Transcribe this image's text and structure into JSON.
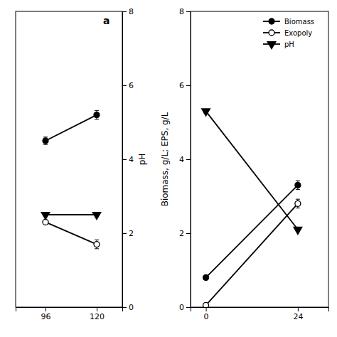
{
  "chart_data": [
    {
      "type": "line",
      "annotations": [
        "a"
      ],
      "x": [
        96,
        120
      ],
      "xlim": [
        82,
        132
      ],
      "xticks": [
        96,
        120
      ],
      "y2lim": [
        0,
        8
      ],
      "y2ticks": [
        0,
        2,
        4,
        6,
        8
      ],
      "y2label": "pH",
      "series": [
        {
          "color": "#000000",
          "marker": "circle",
          "axis": "y2",
          "values": [
            4.5,
            5.2
          ],
          "errors": [
            0.1,
            0.12
          ]
        },
        {
          "color": "#000000",
          "marker": "circle-open",
          "axis": "y2",
          "values": [
            2.3,
            1.7
          ],
          "errors": [
            0.05,
            0.12
          ]
        },
        {
          "color": "#000000",
          "marker": "triangle-down",
          "axis": "y2",
          "values": [
            2.5,
            2.5
          ],
          "errors": [
            0.05,
            0.05
          ]
        }
      ]
    },
    {
      "type": "line",
      "x": [
        0,
        24
      ],
      "xlim": [
        -4,
        32
      ],
      "xticks": [
        0,
        24
      ],
      "ylim": [
        0,
        8
      ],
      "yticks": [
        0,
        2,
        4,
        6,
        8
      ],
      "ylabel": "Biomass, g/L; EPS, g/L",
      "legend": "upper right",
      "series": [
        {
          "name": "Biomass",
          "color": "#000000",
          "marker": "circle",
          "values": [
            0.8,
            3.3
          ],
          "errors": [
            0.05,
            0.12
          ]
        },
        {
          "name": "Exopoly",
          "color": "#000000",
          "marker": "circle-open",
          "values": [
            0.05,
            2.8
          ],
          "errors": [
            0.02,
            0.12
          ]
        },
        {
          "name": "pH",
          "color": "#000000",
          "marker": "triangle-down",
          "values": [
            5.3,
            2.1
          ],
          "errors": [
            0.05,
            0.05
          ]
        }
      ]
    }
  ]
}
